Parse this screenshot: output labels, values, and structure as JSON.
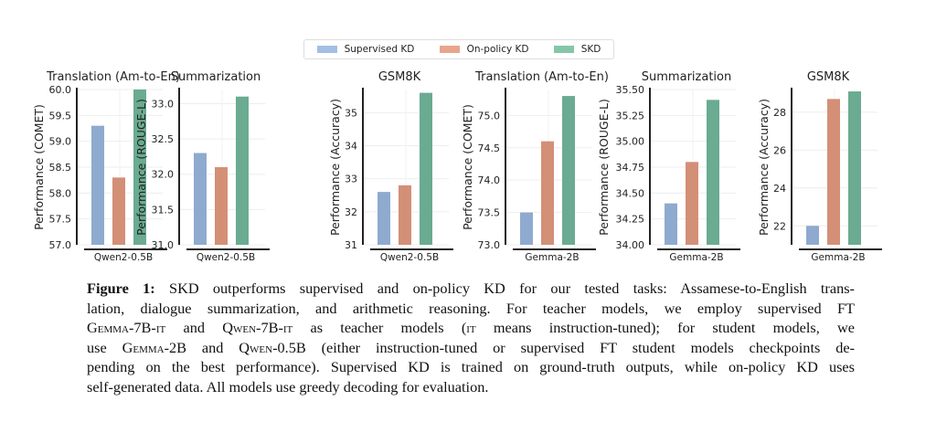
{
  "legend": [
    {
      "label": "Supervised KD",
      "color": "#a4bfe3"
    },
    {
      "label": "On-policy KD",
      "color": "#e8a58c"
    },
    {
      "label": "SKD",
      "color": "#86c6a8"
    }
  ],
  "series_colors": [
    "#8eaacf",
    "#d48f77",
    "#6aab91"
  ],
  "chart_data": [
    {
      "type": "bar",
      "title": "Translation (Am-to-En)",
      "ylabel": "Performance (COMET)",
      "categories": [
        "Qwen2-0.5B"
      ],
      "series": [
        {
          "name": "Supervised KD",
          "values": [
            59.3
          ]
        },
        {
          "name": "On-policy KD",
          "values": [
            58.3
          ]
        },
        {
          "name": "SKD",
          "values": [
            60.0
          ]
        }
      ],
      "ylim": [
        57.0,
        60.0
      ],
      "yticks": [
        "57.0",
        "57.5",
        "58.0",
        "58.5",
        "59.0",
        "59.5",
        "60.0"
      ],
      "grid": true,
      "legend": "top"
    },
    {
      "type": "bar",
      "title": "Summarization",
      "ylabel": "Performance (ROUGE-L)",
      "categories": [
        "Qwen2-0.5B"
      ],
      "series": [
        {
          "name": "Supervised KD",
          "values": [
            32.3
          ]
        },
        {
          "name": "On-policy KD",
          "values": [
            32.1
          ]
        },
        {
          "name": "SKD",
          "values": [
            33.1
          ]
        }
      ],
      "ylim": [
        31.0,
        33.2
      ],
      "yticks": [
        "31.0",
        "31.5",
        "32.0",
        "32.5",
        "33.0"
      ],
      "grid": true,
      "legend": "top"
    },
    {
      "type": "bar",
      "title": "GSM8K",
      "ylabel": "Performance (Accuracy)",
      "categories": [
        "Qwen2-0.5B"
      ],
      "series": [
        {
          "name": "Supervised KD",
          "values": [
            32.6
          ]
        },
        {
          "name": "On-policy KD",
          "values": [
            32.8
          ]
        },
        {
          "name": "SKD",
          "values": [
            35.6
          ]
        }
      ],
      "ylim": [
        31,
        35.7
      ],
      "yticks": [
        "31",
        "32",
        "33",
        "34",
        "35"
      ],
      "grid": true,
      "legend": "top"
    },
    {
      "type": "bar",
      "title": "Translation (Am-to-En)",
      "ylabel": "Performance (COMET)",
      "categories": [
        "Gemma-2B"
      ],
      "series": [
        {
          "name": "Supervised KD",
          "values": [
            73.5
          ]
        },
        {
          "name": "On-policy KD",
          "values": [
            74.6
          ]
        },
        {
          "name": "SKD",
          "values": [
            75.3
          ]
        }
      ],
      "ylim": [
        73.0,
        75.4
      ],
      "yticks": [
        "73.0",
        "73.5",
        "74.0",
        "74.5",
        "75.0"
      ],
      "grid": true,
      "legend": "top"
    },
    {
      "type": "bar",
      "title": "Summarization",
      "ylabel": "Performance (ROUGE-L)",
      "categories": [
        "Gemma-2B"
      ],
      "series": [
        {
          "name": "Supervised KD",
          "values": [
            34.4
          ]
        },
        {
          "name": "On-policy KD",
          "values": [
            34.8
          ]
        },
        {
          "name": "SKD",
          "values": [
            35.4
          ]
        }
      ],
      "ylim": [
        34.0,
        35.5
      ],
      "yticks": [
        "34.00",
        "34.25",
        "34.50",
        "34.75",
        "35.00",
        "35.25",
        "35.50"
      ],
      "grid": true,
      "legend": "top"
    },
    {
      "type": "bar",
      "title": "GSM8K",
      "ylabel": "Performance (Accuracy)",
      "categories": [
        "Gemma-2B"
      ],
      "series": [
        {
          "name": "Supervised KD",
          "values": [
            22.0
          ]
        },
        {
          "name": "On-policy KD",
          "values": [
            28.7
          ]
        },
        {
          "name": "SKD",
          "values": [
            29.1
          ]
        }
      ],
      "ylim": [
        21,
        29.2
      ],
      "yticks": [
        "22",
        "24",
        "26",
        "28"
      ],
      "grid": true,
      "legend": "top"
    }
  ],
  "caption": {
    "lines": [
      [
        {
          "t": "Figure 1:",
          "b": true
        },
        {
          "t": " SKD outperforms supervised and on-policy KD for our tested tasks: Assamese-to-English trans-"
        }
      ],
      [
        {
          "t": "lation, dialogue summarization, and arithmetic reasoning.  For teacher models, we employ supervised FT"
        }
      ],
      [
        {
          "t": "Gemma-7B-it",
          "sc": true
        },
        {
          "t": " and "
        },
        {
          "t": "Qwen-7B-it",
          "sc": true
        },
        {
          "t": " as teacher models ("
        },
        {
          "t": "it",
          "sc": true
        },
        {
          "t": " means instruction-tuned); for student models, we"
        }
      ],
      [
        {
          "t": "use "
        },
        {
          "t": "Gemma-2B",
          "sc": true
        },
        {
          "t": " and "
        },
        {
          "t": "Qwen-0.5B",
          "sc": true
        },
        {
          "t": " (either instruction-tuned or supervised FT student models checkpoints de-"
        }
      ],
      [
        {
          "t": "pending on the best performance). Supervised KD is trained on ground-truth outputs, while on-policy KD uses"
        }
      ],
      [
        {
          "t": "self-generated data. All models use greedy decoding for evaluation."
        }
      ]
    ]
  }
}
